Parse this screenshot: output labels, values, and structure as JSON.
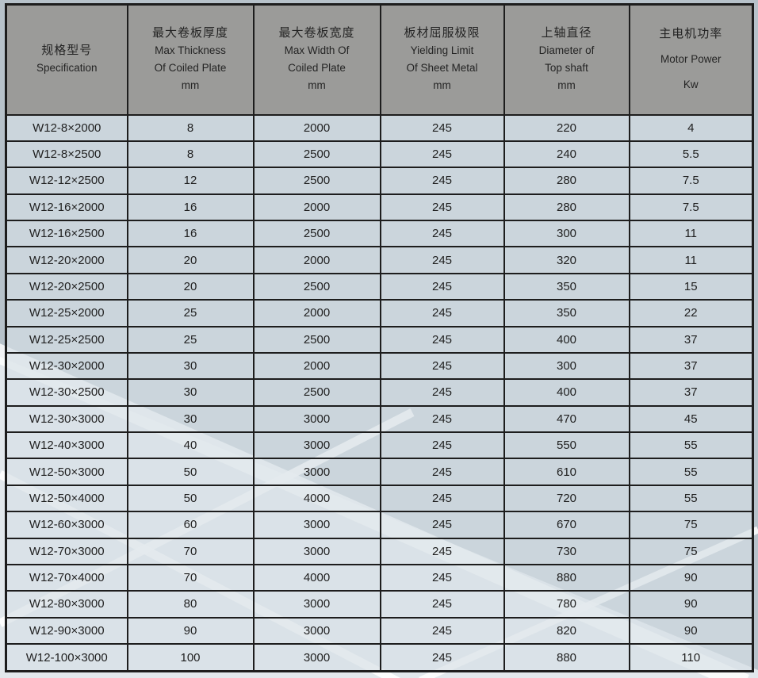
{
  "page": {
    "background_base": "#e2e8ec",
    "background_dark_band": "#b7c2ca",
    "beam_color": "#ffffff",
    "header_bg": "#9b9b99",
    "cell_bg": "rgba(214,223,229,0.66)",
    "border_color": "#1d1d1d",
    "text_color": "#1f1f1f"
  },
  "table": {
    "columns": [
      {
        "zh": "规格型号",
        "en1": "Specification",
        "en2": "",
        "unit": ""
      },
      {
        "zh": "最大卷板厚度",
        "en1": "Max Thickness",
        "en2": "Of Coiled Plate",
        "unit": "mm"
      },
      {
        "zh": "最大卷板宽度",
        "en1": "Max Width  Of",
        "en2": "Coiled Plate",
        "unit": "mm"
      },
      {
        "zh": "板材屈服极限",
        "en1": "Yielding Limit",
        "en2": "Of  Sheet Metal",
        "unit": "mm"
      },
      {
        "zh": "上轴直径",
        "en1": "Diameter of",
        "en2": "Top shaft",
        "unit": "mm"
      },
      {
        "zh": "主电机功率",
        "en1": "Motor Power",
        "en2": "",
        "unit": "Kw"
      }
    ],
    "rows": [
      [
        "W12-8×2000",
        "8",
        "2000",
        "245",
        "220",
        "4"
      ],
      [
        "W12-8×2500",
        "8",
        "2500",
        "245",
        "240",
        "5.5"
      ],
      [
        "W12-12×2500",
        "12",
        "2500",
        "245",
        "280",
        "7.5"
      ],
      [
        "W12-16×2000",
        "16",
        "2000",
        "245",
        "280",
        "7.5"
      ],
      [
        "W12-16×2500",
        "16",
        "2500",
        "245",
        "300",
        "11"
      ],
      [
        "W12-20×2000",
        "20",
        "2000",
        "245",
        "320",
        "11"
      ],
      [
        "W12-20×2500",
        "20",
        "2500",
        "245",
        "350",
        "15"
      ],
      [
        "W12-25×2000",
        "25",
        "2000",
        "245",
        "350",
        "22"
      ],
      [
        "W12-25×2500",
        "25",
        "2500",
        "245",
        "400",
        "37"
      ],
      [
        "W12-30×2000",
        "30",
        "2000",
        "245",
        "300",
        "37"
      ],
      [
        "W12-30×2500",
        "30",
        "2500",
        "245",
        "400",
        "37"
      ],
      [
        "W12-30×3000",
        "30",
        "3000",
        "245",
        "470",
        "45"
      ],
      [
        "W12-40×3000",
        "40",
        "3000",
        "245",
        "550",
        "55"
      ],
      [
        "W12-50×3000",
        "50",
        "3000",
        "245",
        "610",
        "55"
      ],
      [
        "W12-50×4000",
        "50",
        "4000",
        "245",
        "720",
        "55"
      ],
      [
        "W12-60×3000",
        "60",
        "3000",
        "245",
        "670",
        "75"
      ],
      [
        "W12-70×3000",
        "70",
        "3000",
        "245",
        "730",
        "75"
      ],
      [
        "W12-70×4000",
        "70",
        "4000",
        "245",
        "880",
        "90"
      ],
      [
        "W12-80×3000",
        "80",
        "3000",
        "245",
        "780",
        "90"
      ],
      [
        "W12-90×3000",
        "90",
        "3000",
        "245",
        "820",
        "90"
      ],
      [
        "W12-100×3000",
        "100",
        "3000",
        "245",
        "880",
        "110"
      ]
    ]
  }
}
